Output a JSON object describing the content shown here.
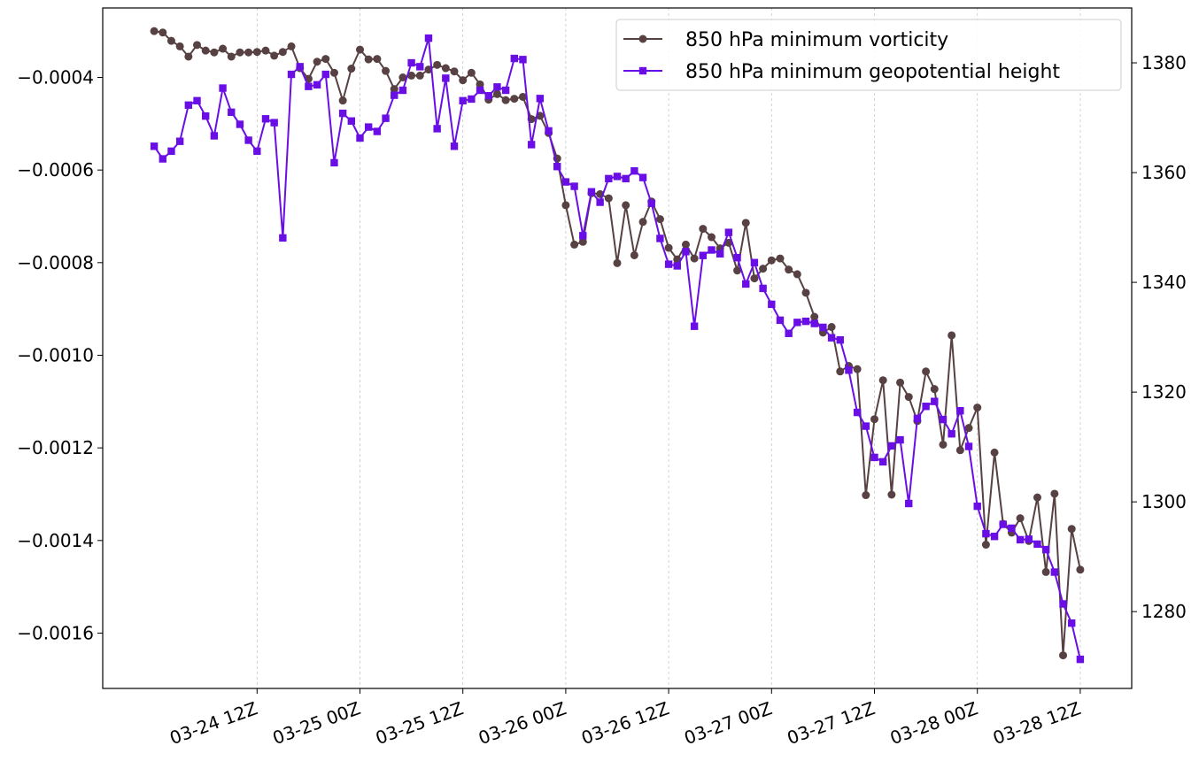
{
  "chart_data": {
    "type": "line",
    "title": "",
    "xlabel": "",
    "ylabel": "",
    "y2label": "",
    "grid": "vertical dashed at x ticks",
    "legend_placement": "top-right",
    "x_tick_labels": [
      "03-24 12Z",
      "03-25 00Z",
      "03-25 12Z",
      "03-26 00Z",
      "03-26 12Z",
      "03-27 00Z",
      "03-27 12Z",
      "03-28 00Z",
      "03-28 12Z"
    ],
    "y_left_ticks": [
      "−0.0016",
      "−0.0014",
      "−0.0012",
      "−0.0010",
      "−0.0008",
      "−0.0006",
      "−0.0004"
    ],
    "y_right_ticks": [
      "1280",
      "1300",
      "1320",
      "1340",
      "1360",
      "1380"
    ],
    "y_left_lim": [
      -0.0017195,
      -0.00025
    ],
    "y_right_lim": [
      1266,
      1390
    ],
    "x_hours_lim": [
      -6,
      114
    ],
    "x_start": "2025-03-24 00Z",
    "x_interval_hours": 1,
    "series": [
      {
        "name": "850 hPa minimum vorticity",
        "axis": "left",
        "color": "#574142",
        "marker": "circle",
        "values": [
          -0.0003,
          -0.000303,
          -0.000321,
          -0.000333,
          -0.000355,
          -0.00033,
          -0.000342,
          -0.000346,
          -0.000338,
          -0.000355,
          -0.000346,
          -0.000346,
          -0.000345,
          -0.000342,
          -0.000353,
          -0.000345,
          -0.000333,
          -0.00038,
          -0.000403,
          -0.000366,
          -0.00036,
          -0.00039,
          -0.00045,
          -0.000381,
          -0.00034,
          -0.000361,
          -0.00036,
          -0.000386,
          -0.000425,
          -0.0004,
          -0.000396,
          -0.000396,
          -0.000383,
          -0.000373,
          -0.00038,
          -0.000387,
          -0.000406,
          -0.00039,
          -0.000415,
          -0.000448,
          -0.000436,
          -0.000449,
          -0.000446,
          -0.000442,
          -0.00049,
          -0.000483,
          -0.00052,
          -0.000575,
          -0.000676,
          -0.000761,
          -0.000755,
          -0.00065,
          -0.000652,
          -0.000661,
          -0.000801,
          -0.000676,
          -0.000784,
          -0.000712,
          -0.000668,
          -0.000706,
          -0.000768,
          -0.000793,
          -0.000761,
          -0.000791,
          -0.000727,
          -0.000745,
          -0.000769,
          -0.000757,
          -0.000817,
          -0.000714,
          -0.000834,
          -0.000813,
          -0.000795,
          -0.000791,
          -0.000815,
          -0.000825,
          -0.000865,
          -0.000917,
          -0.000951,
          -0.000939,
          -0.001035,
          -0.001023,
          -0.00103,
          -0.001302,
          -0.001138,
          -0.001054,
          -0.001301,
          -0.001059,
          -0.00109,
          -0.001142,
          -0.001035,
          -0.001073,
          -0.001193,
          -0.000957,
          -0.001205,
          -0.001157,
          -0.001113,
          -0.001409,
          -0.00121,
          -0.001364,
          -0.001383,
          -0.001352,
          -0.001401,
          -0.001307,
          -0.001468,
          -0.001299,
          -0.001648,
          -0.001375,
          -0.001463
        ]
      },
      {
        "name": "850 hPa minimum geopotential height",
        "axis": "right",
        "color": "#6a0ee6",
        "marker": "square",
        "values": [
          1364.8,
          1362.5,
          1363.9,
          1365.7,
          1372.3,
          1373.1,
          1370.3,
          1366.7,
          1375.4,
          1371.0,
          1368.8,
          1365.9,
          1363.9,
          1369.8,
          1369.1,
          1348.1,
          1377.9,
          1379.3,
          1375.7,
          1376.0,
          1377.9,
          1361.8,
          1370.8,
          1369.4,
          1366.3,
          1368.3,
          1367.5,
          1369.9,
          1374.1,
          1375.0,
          1380.0,
          1379.3,
          1384.5,
          1368.0,
          1377.2,
          1364.8,
          1373.1,
          1373.4,
          1375.0,
          1374.0,
          1375.6,
          1375.0,
          1380.8,
          1380.6,
          1365.1,
          1373.5,
          1367.6,
          1361.1,
          1358.3,
          1357.5,
          1348.5,
          1356.5,
          1354.6,
          1358.9,
          1359.3,
          1358.9,
          1360.3,
          1359.1,
          1354.4,
          1348.0,
          1343.3,
          1343.0,
          1345.6,
          1332.0,
          1344.9,
          1345.9,
          1345.2,
          1349.1,
          1344.5,
          1339.7,
          1343.6,
          1338.9,
          1336.0,
          1333.1,
          1330.7,
          1332.7,
          1332.9,
          1332.5,
          1331.8,
          1329.9,
          1329.5,
          1324.0,
          1316.3,
          1313.8,
          1308.1,
          1307.3,
          1310.2,
          1311.3,
          1299.7,
          1315.2,
          1317.4,
          1318.3,
          1315.0,
          1312.4,
          1316.6,
          1310.1,
          1299.2,
          1294.2,
          1293.7,
          1295.9,
          1295.2,
          1293.1,
          1293.2,
          1292.3,
          1291.3,
          1287.2,
          1281.4,
          1277.9,
          1271.3
        ]
      }
    ]
  }
}
